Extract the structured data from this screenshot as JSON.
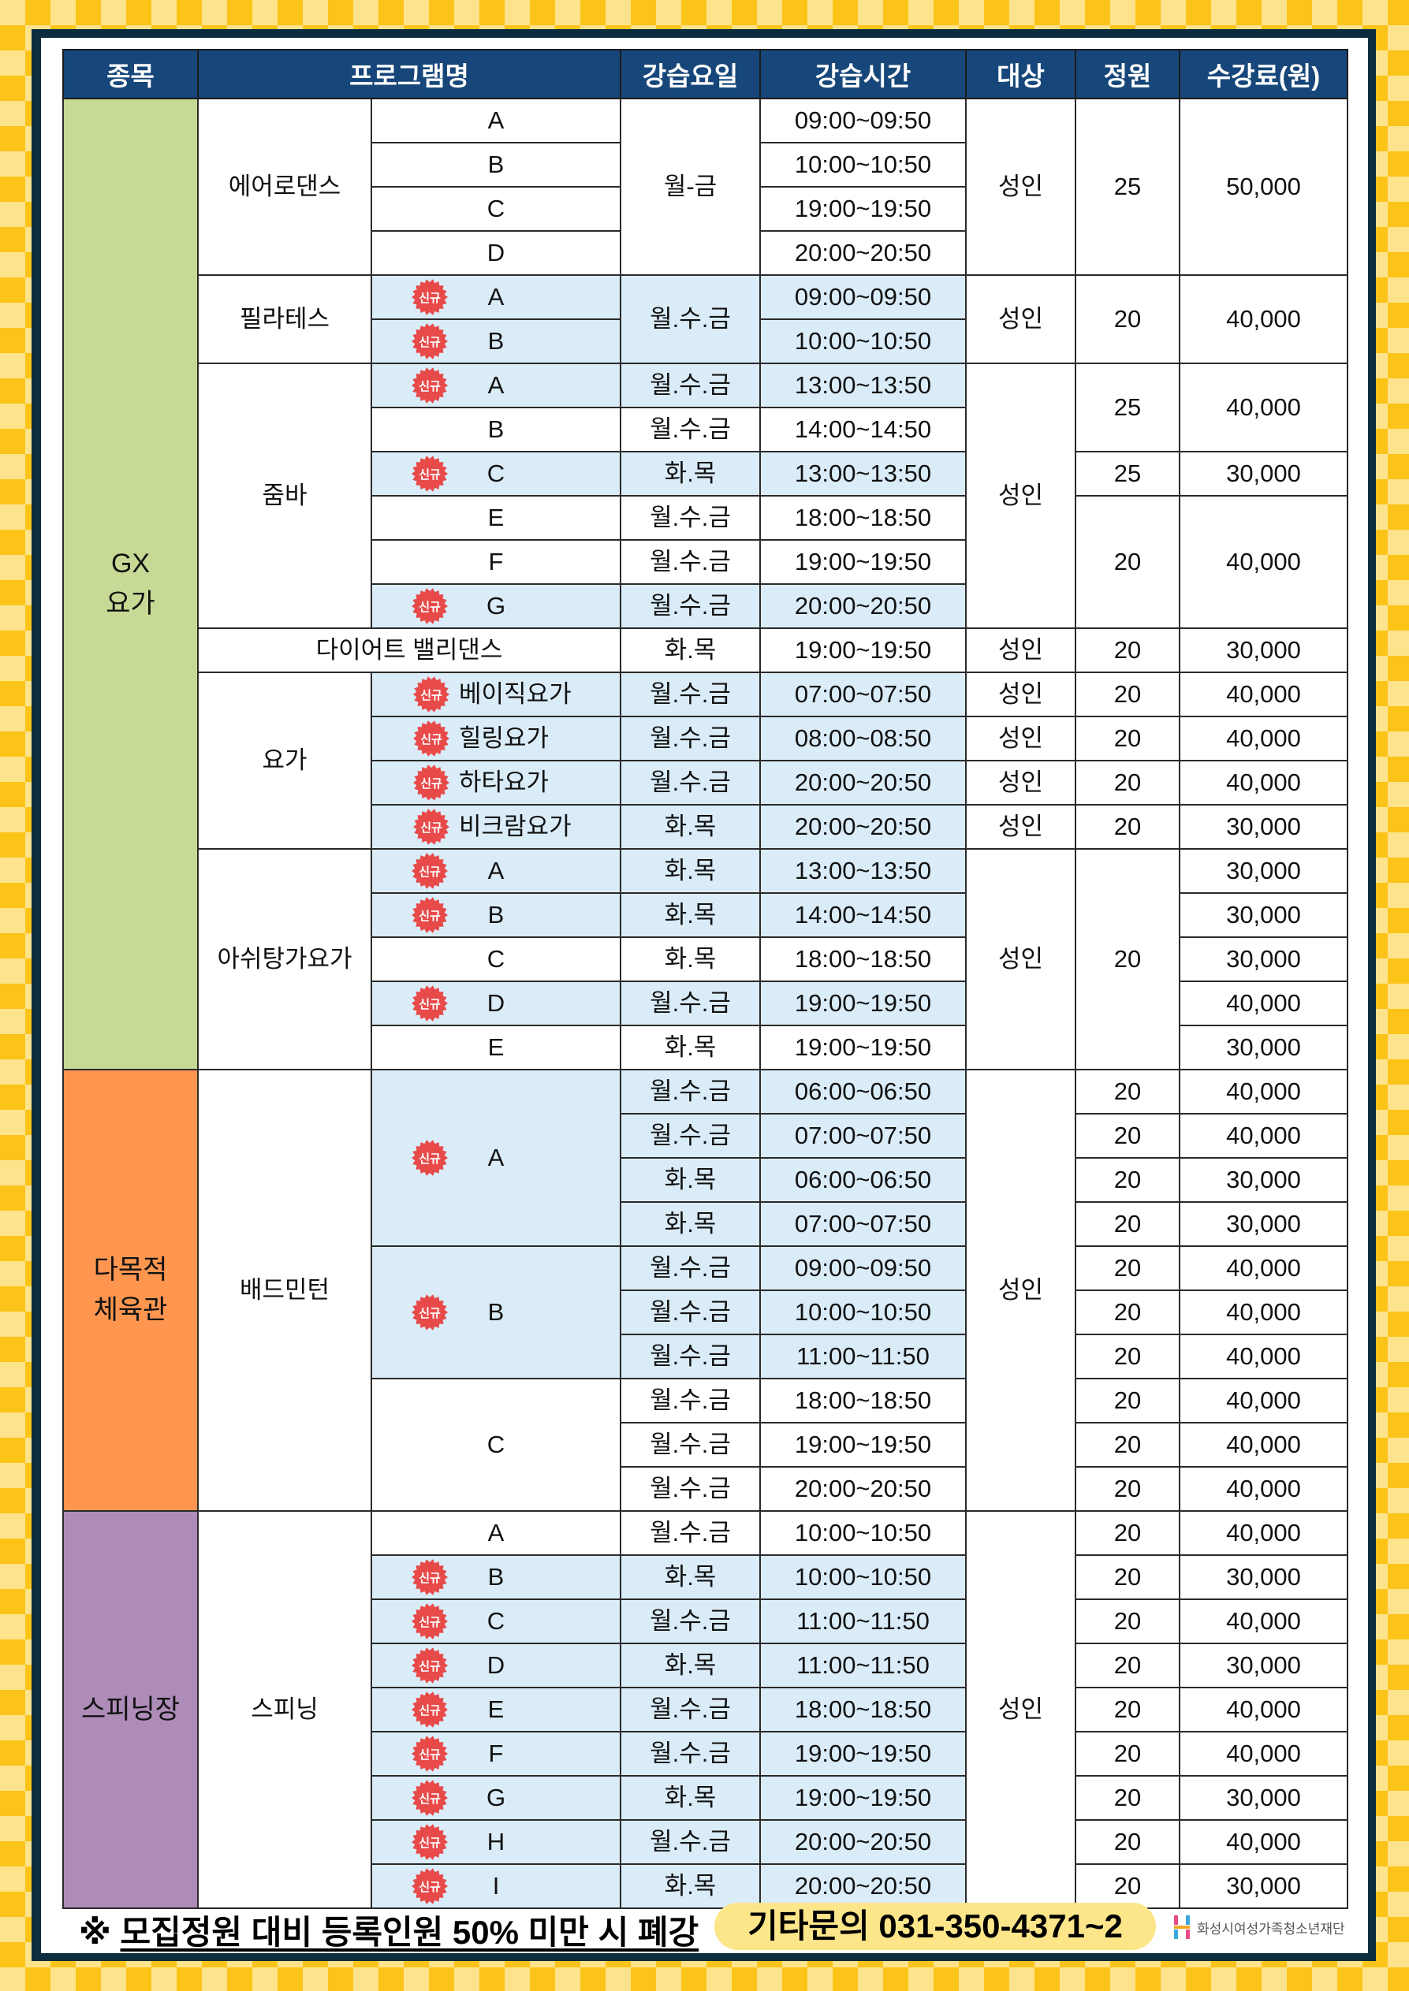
{
  "colors": {
    "header": "#17477a",
    "highlight": "#daecf8",
    "badge": "#e84a4a",
    "gx": "#c6da95",
    "gym": "#ff9650",
    "spin": "#ae8cb8"
  },
  "headers": [
    "종목",
    "프로그램명",
    "강습요일",
    "강습시간",
    "대상",
    "정원",
    "수강료(원)"
  ],
  "badge_label": "신규",
  "rows": [
    [
      {
        "k": "category",
        "t": "GX\n요가",
        "rs": 22,
        "c": "gx"
      },
      {
        "k": "program",
        "t": "에어로댄스",
        "rs": 4
      },
      {
        "k": "class",
        "t": "A"
      },
      {
        "k": "days",
        "t": "월-금",
        "rs": 4
      },
      {
        "k": "time",
        "t": "09:00~09:50"
      },
      {
        "k": "target",
        "t": "성인",
        "rs": 4
      },
      {
        "k": "capacity",
        "t": "25",
        "rs": 4
      },
      {
        "k": "fee",
        "t": "50,000",
        "rs": 4
      }
    ],
    [
      {
        "k": "class",
        "t": "B"
      },
      {
        "k": "time",
        "t": "10:00~10:50"
      }
    ],
    [
      {
        "k": "class",
        "t": "C"
      },
      {
        "k": "time",
        "t": "19:00~19:50"
      }
    ],
    [
      {
        "k": "class",
        "t": "D"
      },
      {
        "k": "time",
        "t": "20:00~20:50"
      }
    ],
    [
      {
        "k": "program",
        "t": "필라테스",
        "rs": 2
      },
      {
        "k": "class",
        "t": "A",
        "new": true,
        "hl": true
      },
      {
        "k": "days",
        "t": "월.수.금",
        "rs": 2,
        "hl": true
      },
      {
        "k": "time",
        "t": "09:00~09:50",
        "hl": true
      },
      {
        "k": "target",
        "t": "성인",
        "rs": 2
      },
      {
        "k": "capacity",
        "t": "20",
        "rs": 2
      },
      {
        "k": "fee",
        "t": "40,000",
        "rs": 2
      }
    ],
    [
      {
        "k": "class",
        "t": "B",
        "new": true,
        "hl": true
      },
      {
        "k": "time",
        "t": "10:00~10:50",
        "hl": true
      }
    ],
    [
      {
        "k": "program",
        "t": "줌바",
        "rs": 6
      },
      {
        "k": "class",
        "t": "A",
        "new": true,
        "hl": true
      },
      {
        "k": "days",
        "t": "월.수.금",
        "hl": true
      },
      {
        "k": "time",
        "t": "13:00~13:50",
        "hl": true
      },
      {
        "k": "target",
        "t": "성인",
        "rs": 6
      },
      {
        "k": "capacity",
        "t": "25",
        "rs": 2
      },
      {
        "k": "fee",
        "t": "40,000",
        "rs": 2
      }
    ],
    [
      {
        "k": "class",
        "t": "B"
      },
      {
        "k": "days",
        "t": "월.수.금"
      },
      {
        "k": "time",
        "t": "14:00~14:50"
      }
    ],
    [
      {
        "k": "class",
        "t": "C",
        "new": true,
        "hl": true
      },
      {
        "k": "days",
        "t": "화.목",
        "hl": true
      },
      {
        "k": "time",
        "t": "13:00~13:50",
        "hl": true
      },
      {
        "k": "capacity",
        "t": "25"
      },
      {
        "k": "fee",
        "t": "30,000"
      }
    ],
    [
      {
        "k": "class",
        "t": "E"
      },
      {
        "k": "days",
        "t": "월.수.금"
      },
      {
        "k": "time",
        "t": "18:00~18:50"
      },
      {
        "k": "capacity",
        "t": "20",
        "rs": 3
      },
      {
        "k": "fee",
        "t": "40,000",
        "rs": 3
      }
    ],
    [
      {
        "k": "class",
        "t": "F"
      },
      {
        "k": "days",
        "t": "월.수.금"
      },
      {
        "k": "time",
        "t": "19:00~19:50"
      }
    ],
    [
      {
        "k": "class",
        "t": "G",
        "new": true,
        "hl": true
      },
      {
        "k": "days",
        "t": "월.수.금",
        "hl": true
      },
      {
        "k": "time",
        "t": "20:00~20:50",
        "hl": true
      }
    ],
    [
      {
        "k": "program",
        "t": "다이어트 밸리댄스",
        "cs": 2
      },
      {
        "k": "days",
        "t": "화.목"
      },
      {
        "k": "time",
        "t": "19:00~19:50"
      },
      {
        "k": "target",
        "t": "성인"
      },
      {
        "k": "capacity",
        "t": "20"
      },
      {
        "k": "fee",
        "t": "30,000"
      }
    ],
    [
      {
        "k": "program",
        "t": "요가",
        "rs": 4
      },
      {
        "k": "class",
        "t": "베이직요가",
        "new": true,
        "hl": true
      },
      {
        "k": "days",
        "t": "월.수.금",
        "hl": true
      },
      {
        "k": "time",
        "t": "07:00~07:50",
        "hl": true
      },
      {
        "k": "target",
        "t": "성인"
      },
      {
        "k": "capacity",
        "t": "20"
      },
      {
        "k": "fee",
        "t": "40,000"
      }
    ],
    [
      {
        "k": "class",
        "t": "힐링요가",
        "new": true,
        "hl": true
      },
      {
        "k": "days",
        "t": "월.수.금",
        "hl": true
      },
      {
        "k": "time",
        "t": "08:00~08:50",
        "hl": true
      },
      {
        "k": "target",
        "t": "성인"
      },
      {
        "k": "capacity",
        "t": "20"
      },
      {
        "k": "fee",
        "t": "40,000"
      }
    ],
    [
      {
        "k": "class",
        "t": "하타요가",
        "new": true,
        "hl": true
      },
      {
        "k": "days",
        "t": "월.수.금",
        "hl": true
      },
      {
        "k": "time",
        "t": "20:00~20:50",
        "hl": true
      },
      {
        "k": "target",
        "t": "성인"
      },
      {
        "k": "capacity",
        "t": "20"
      },
      {
        "k": "fee",
        "t": "40,000"
      }
    ],
    [
      {
        "k": "class",
        "t": "비크람요가",
        "new": true,
        "hl": true
      },
      {
        "k": "days",
        "t": "화.목",
        "hl": true
      },
      {
        "k": "time",
        "t": "20:00~20:50",
        "hl": true
      },
      {
        "k": "target",
        "t": "성인"
      },
      {
        "k": "capacity",
        "t": "20"
      },
      {
        "k": "fee",
        "t": "30,000"
      }
    ],
    [
      {
        "k": "program",
        "t": "아쉬탕가요가",
        "rs": 5
      },
      {
        "k": "class",
        "t": "A",
        "new": true,
        "hl": true
      },
      {
        "k": "days",
        "t": "화.목",
        "hl": true
      },
      {
        "k": "time",
        "t": "13:00~13:50",
        "hl": true
      },
      {
        "k": "target",
        "t": "성인",
        "rs": 5
      },
      {
        "k": "capacity",
        "t": "20",
        "rs": 5
      },
      {
        "k": "fee",
        "t": "30,000"
      }
    ],
    [
      {
        "k": "class",
        "t": "B",
        "new": true,
        "hl": true
      },
      {
        "k": "days",
        "t": "화.목",
        "hl": true
      },
      {
        "k": "time",
        "t": "14:00~14:50",
        "hl": true
      },
      {
        "k": "fee",
        "t": "30,000"
      }
    ],
    [
      {
        "k": "class",
        "t": "C"
      },
      {
        "k": "days",
        "t": "화.목"
      },
      {
        "k": "time",
        "t": "18:00~18:50"
      },
      {
        "k": "fee",
        "t": "30,000"
      }
    ],
    [
      {
        "k": "class",
        "t": "D",
        "new": true,
        "hl": true
      },
      {
        "k": "days",
        "t": "월.수.금",
        "hl": true
      },
      {
        "k": "time",
        "t": "19:00~19:50",
        "hl": true
      },
      {
        "k": "fee",
        "t": "40,000"
      }
    ],
    [
      {
        "k": "class",
        "t": "E"
      },
      {
        "k": "days",
        "t": "화.목"
      },
      {
        "k": "time",
        "t": "19:00~19:50"
      },
      {
        "k": "fee",
        "t": "30,000"
      }
    ],
    [
      {
        "k": "category",
        "t": "다목적\n체육관",
        "rs": 10,
        "c": "gym"
      },
      {
        "k": "program",
        "t": "배드민턴",
        "rs": 10
      },
      {
        "k": "class",
        "t": "A",
        "rs": 4,
        "new": true,
        "hl": true
      },
      {
        "k": "days",
        "t": "월.수.금",
        "hl": true
      },
      {
        "k": "time",
        "t": "06:00~06:50",
        "hl": true
      },
      {
        "k": "target",
        "t": "성인",
        "rs": 10
      },
      {
        "k": "capacity",
        "t": "20"
      },
      {
        "k": "fee",
        "t": "40,000"
      }
    ],
    [
      {
        "k": "days",
        "t": "월.수.금",
        "hl": true
      },
      {
        "k": "time",
        "t": "07:00~07:50",
        "hl": true
      },
      {
        "k": "capacity",
        "t": "20"
      },
      {
        "k": "fee",
        "t": "40,000"
      }
    ],
    [
      {
        "k": "days",
        "t": "화.목",
        "hl": true
      },
      {
        "k": "time",
        "t": "06:00~06:50",
        "hl": true
      },
      {
        "k": "capacity",
        "t": "20"
      },
      {
        "k": "fee",
        "t": "30,000"
      }
    ],
    [
      {
        "k": "days",
        "t": "화.목",
        "hl": true
      },
      {
        "k": "time",
        "t": "07:00~07:50",
        "hl": true
      },
      {
        "k": "capacity",
        "t": "20"
      },
      {
        "k": "fee",
        "t": "30,000"
      }
    ],
    [
      {
        "k": "class",
        "t": "B",
        "rs": 3,
        "new": true,
        "hl": true
      },
      {
        "k": "days",
        "t": "월.수.금",
        "hl": true
      },
      {
        "k": "time",
        "t": "09:00~09:50",
        "hl": true
      },
      {
        "k": "capacity",
        "t": "20"
      },
      {
        "k": "fee",
        "t": "40,000"
      }
    ],
    [
      {
        "k": "days",
        "t": "월.수.금",
        "hl": true
      },
      {
        "k": "time",
        "t": "10:00~10:50",
        "hl": true
      },
      {
        "k": "capacity",
        "t": "20"
      },
      {
        "k": "fee",
        "t": "40,000"
      }
    ],
    [
      {
        "k": "days",
        "t": "월.수.금",
        "hl": true
      },
      {
        "k": "time",
        "t": "11:00~11:50",
        "hl": true
      },
      {
        "k": "capacity",
        "t": "20"
      },
      {
        "k": "fee",
        "t": "40,000"
      }
    ],
    [
      {
        "k": "class",
        "t": "C",
        "rs": 3
      },
      {
        "k": "days",
        "t": "월.수.금"
      },
      {
        "k": "time",
        "t": "18:00~18:50"
      },
      {
        "k": "capacity",
        "t": "20"
      },
      {
        "k": "fee",
        "t": "40,000"
      }
    ],
    [
      {
        "k": "days",
        "t": "월.수.금"
      },
      {
        "k": "time",
        "t": "19:00~19:50"
      },
      {
        "k": "capacity",
        "t": "20"
      },
      {
        "k": "fee",
        "t": "40,000"
      }
    ],
    [
      {
        "k": "days",
        "t": "월.수.금"
      },
      {
        "k": "time",
        "t": "20:00~20:50"
      },
      {
        "k": "capacity",
        "t": "20"
      },
      {
        "k": "fee",
        "t": "40,000"
      }
    ],
    [
      {
        "k": "category",
        "t": "스피닝장",
        "rs": 9,
        "c": "spin"
      },
      {
        "k": "program",
        "t": "스피닝",
        "rs": 9
      },
      {
        "k": "class",
        "t": "A"
      },
      {
        "k": "days",
        "t": "월.수.금"
      },
      {
        "k": "time",
        "t": "10:00~10:50"
      },
      {
        "k": "target",
        "t": "성인",
        "rs": 9
      },
      {
        "k": "capacity",
        "t": "20"
      },
      {
        "k": "fee",
        "t": "40,000"
      }
    ],
    [
      {
        "k": "class",
        "t": "B",
        "new": true,
        "hl": true
      },
      {
        "k": "days",
        "t": "화.목",
        "hl": true
      },
      {
        "k": "time",
        "t": "10:00~10:50",
        "hl": true
      },
      {
        "k": "capacity",
        "t": "20"
      },
      {
        "k": "fee",
        "t": "30,000"
      }
    ],
    [
      {
        "k": "class",
        "t": "C",
        "new": true,
        "hl": true
      },
      {
        "k": "days",
        "t": "월.수.금",
        "hl": true
      },
      {
        "k": "time",
        "t": "11:00~11:50",
        "hl": true
      },
      {
        "k": "capacity",
        "t": "20"
      },
      {
        "k": "fee",
        "t": "40,000"
      }
    ],
    [
      {
        "k": "class",
        "t": "D",
        "new": true,
        "hl": true
      },
      {
        "k": "days",
        "t": "화.목",
        "hl": true
      },
      {
        "k": "time",
        "t": "11:00~11:50",
        "hl": true
      },
      {
        "k": "capacity",
        "t": "20"
      },
      {
        "k": "fee",
        "t": "30,000"
      }
    ],
    [
      {
        "k": "class",
        "t": "E",
        "new": true,
        "hl": true
      },
      {
        "k": "days",
        "t": "월.수.금",
        "hl": true
      },
      {
        "k": "time",
        "t": "18:00~18:50",
        "hl": true
      },
      {
        "k": "capacity",
        "t": "20"
      },
      {
        "k": "fee",
        "t": "40,000"
      }
    ],
    [
      {
        "k": "class",
        "t": "F",
        "new": true,
        "hl": true
      },
      {
        "k": "days",
        "t": "월.수.금",
        "hl": true
      },
      {
        "k": "time",
        "t": "19:00~19:50",
        "hl": true
      },
      {
        "k": "capacity",
        "t": "20"
      },
      {
        "k": "fee",
        "t": "40,000"
      }
    ],
    [
      {
        "k": "class",
        "t": "G",
        "new": true,
        "hl": true
      },
      {
        "k": "days",
        "t": "화.목",
        "hl": true
      },
      {
        "k": "time",
        "t": "19:00~19:50",
        "hl": true
      },
      {
        "k": "capacity",
        "t": "20"
      },
      {
        "k": "fee",
        "t": "30,000"
      }
    ],
    [
      {
        "k": "class",
        "t": "H",
        "new": true,
        "hl": true
      },
      {
        "k": "days",
        "t": "월.수.금",
        "hl": true
      },
      {
        "k": "time",
        "t": "20:00~20:50",
        "hl": true
      },
      {
        "k": "capacity",
        "t": "20"
      },
      {
        "k": "fee",
        "t": "40,000"
      }
    ],
    [
      {
        "k": "class",
        "t": "I",
        "new": true,
        "hl": true
      },
      {
        "k": "days",
        "t": "화.목",
        "hl": true
      },
      {
        "k": "time",
        "t": "20:00~20:50",
        "hl": true
      },
      {
        "k": "capacity",
        "t": "20"
      },
      {
        "k": "fee",
        "t": "30,000"
      }
    ]
  ],
  "footer": {
    "mark": "※",
    "note": "모집정원 대비 등록인원 50% 미만 시 폐강",
    "contact": "기타문의 031-350-4371~2",
    "logo_text": "화성시여성가족청소년재단"
  }
}
